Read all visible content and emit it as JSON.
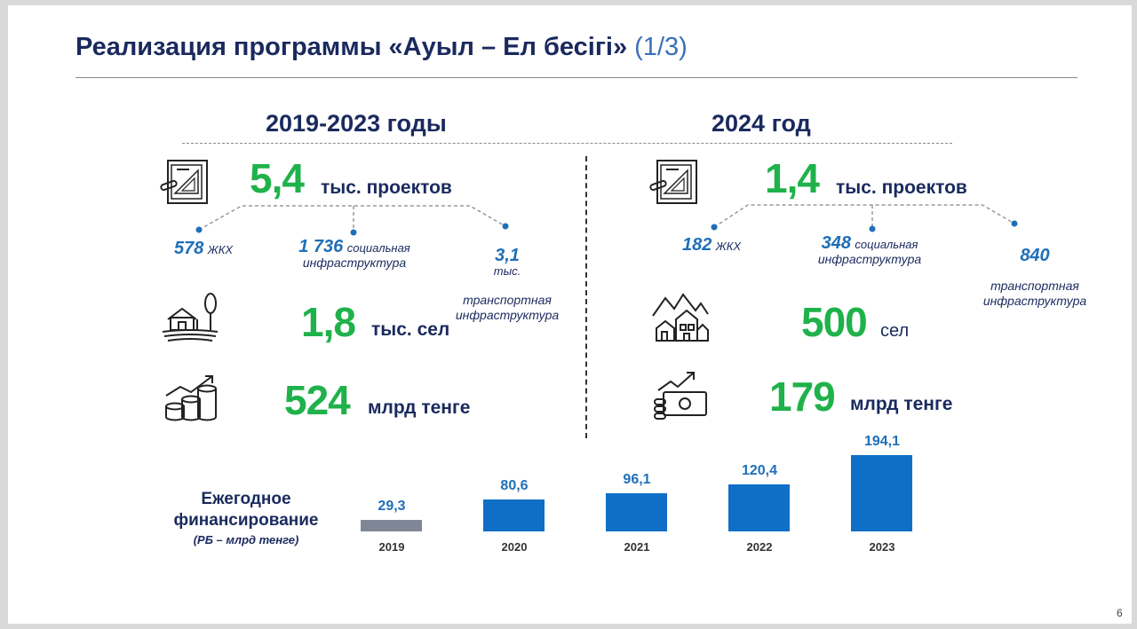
{
  "title": {
    "main": "Реализация программы «Ауыл – Ел бесігі»",
    "part": "(1/3)"
  },
  "left": {
    "heading": "2019-2023 годы",
    "projects": {
      "value": "5,4",
      "unit": "тыс. проектов"
    },
    "breakdown": [
      {
        "num": "578",
        "suffix": "ЖКХ",
        "label": ""
      },
      {
        "num": "1 736",
        "suffix": "социальная",
        "label": "инфраструктура"
      },
      {
        "num": "3,1",
        "suffix": "тыс.",
        "label": "транспортная\nинфраструктура"
      }
    ],
    "villages": {
      "value": "1,8",
      "unit": "тыс. сел"
    },
    "money": {
      "value": "524",
      "unit": "млрд тенге"
    }
  },
  "right": {
    "heading": "2024 год",
    "projects": {
      "value": "1,4",
      "unit": "тыс. проектов"
    },
    "breakdown": [
      {
        "num": "182",
        "suffix": "ЖКХ",
        "label": ""
      },
      {
        "num": "348",
        "suffix": "социальная",
        "label": "инфраструктура"
      },
      {
        "num": "840",
        "suffix": "",
        "label": "транспортная\nинфраструктура"
      }
    ],
    "villages": {
      "value": "500",
      "unit": "сел"
    },
    "money": {
      "value": "179",
      "unit": "млрд тенге"
    }
  },
  "financing": {
    "title": "Ежегодное\nфинансирование",
    "subtitle": "(РБ – млрд тенге)"
  },
  "chart_data": {
    "type": "bar",
    "categories": [
      "2019",
      "2020",
      "2021",
      "2022",
      "2023"
    ],
    "values": [
      29.3,
      80.6,
      96.1,
      120.4,
      194.1
    ],
    "value_labels": [
      "29,3",
      "80,6",
      "96,1",
      "120,4",
      "194,1"
    ],
    "colors": [
      "#7f8797",
      "#0f6fc6",
      "#0f6fc6",
      "#0f6fc6",
      "#0f6fc6"
    ],
    "grid": false
  },
  "page_number": "6",
  "colors": {
    "navy": "#1a2a5e",
    "green": "#1fb24a",
    "blue": "#1f6fb8",
    "bar_blue": "#0f6fc6",
    "bar_grey": "#7f8797"
  },
  "icons": {
    "left_projects": "blueprint-document-icon",
    "right_projects": "blueprint-document-icon",
    "left_villages": "farm-house-icon",
    "right_villages": "village-houses-icon",
    "left_money": "coins-growth-icon",
    "right_money": "money-growth-icon"
  }
}
